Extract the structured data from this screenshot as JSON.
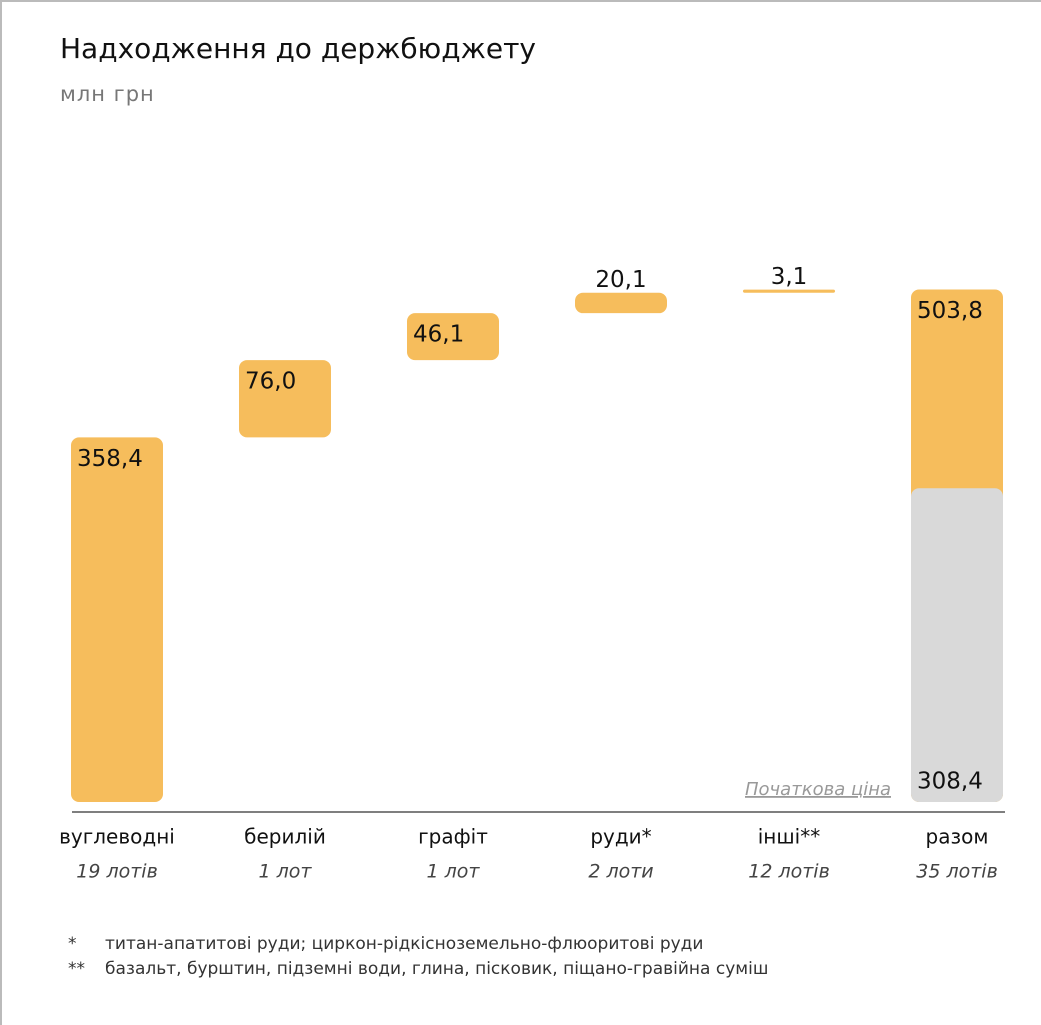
{
  "chart_data": {
    "type": "waterfall",
    "title": "Надходження до держбюджету",
    "subtitle": "млн грн",
    "categories": [
      "вуглеводні",
      "берилій",
      "графіт",
      "руди*",
      "інші**",
      "разом"
    ],
    "sublabels": [
      "19 лотів",
      "1 лот",
      "1 лот",
      "2 лоти",
      "12 лотів",
      "35 лотів"
    ],
    "values": [
      358.4,
      76.0,
      46.1,
      20.1,
      3.1,
      503.8
    ],
    "value_labels": [
      "358,4",
      "76,0",
      "46,1",
      "20,1",
      "3,1",
      "503,8"
    ],
    "is_total": [
      false,
      false,
      false,
      false,
      false,
      true
    ],
    "color": "#f6bd5c",
    "initial_price": {
      "name": "Початкова ціна",
      "value": 308.4,
      "label": "308,4",
      "color": "#d9d9d9"
    },
    "ylim": [
      0,
      520
    ]
  },
  "footnotes": [
    {
      "mark": "*",
      "text": "титан-апатитові руди; циркон-рідкісноземельно-флюоритові руди"
    },
    {
      "mark": "**",
      "text": "базальт, бурштин, підземні води, глина, пісковик, піщано-гравійна суміш"
    }
  ]
}
